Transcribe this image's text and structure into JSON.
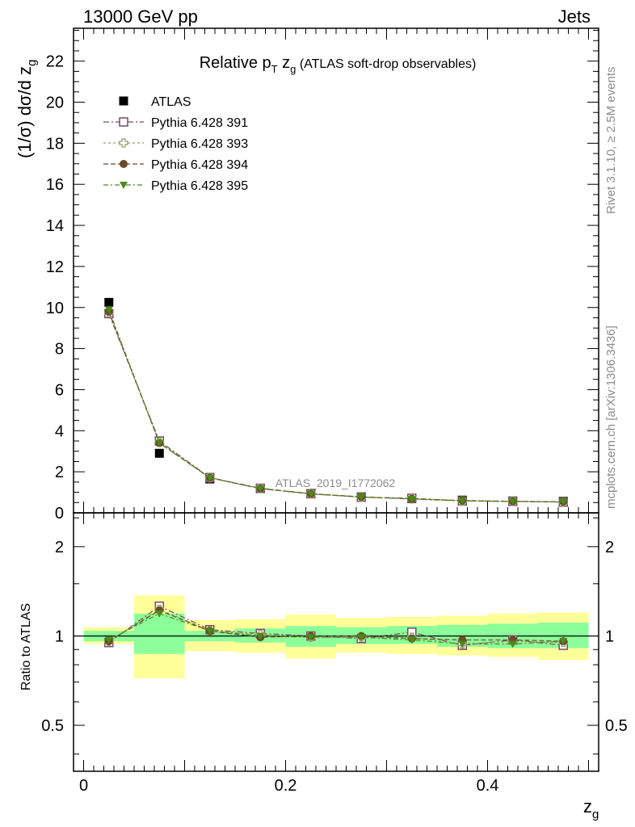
{
  "header": {
    "energy_label": "13000 GeV pp",
    "process_label": "Jets"
  },
  "side": {
    "rivet": "Rivet 3.1.10, ≥ 2.5M events",
    "mcplots": "mcplots.cern.ch [arXiv:1306.3436]"
  },
  "colors": {
    "atlas": "#000000",
    "p391": "#7a4a62",
    "p393": "#9a9a6a",
    "p394": "#6b4a2a",
    "p395": "#4a8a1a",
    "band_inner": "#8cff9a",
    "band_outer": "#ffff99"
  },
  "chart_data": [
    {
      "type": "scatter",
      "title": "Relative pT zg (ATLAS soft-drop observables)",
      "title_parts": {
        "main": "Relative p",
        "sub_t": "T",
        "mid": " z",
        "sub_g": "g",
        "rest": " (ATLAS soft-drop observables)"
      },
      "ylabel": "(1/σ) dσ/d z",
      "ylabel_sub": "g",
      "watermark": "ATLAS_2019_I1772062",
      "xlim": [
        -0.01,
        0.51
      ],
      "ylim": [
        0,
        23.6
      ],
      "yticks": [
        "0",
        "2",
        "4",
        "6",
        "8",
        "10",
        "12",
        "14",
        "16",
        "18",
        "20",
        "22"
      ],
      "legend_placement": "top-left",
      "x": [
        0.025,
        0.075,
        0.125,
        0.175,
        0.225,
        0.275,
        0.325,
        0.375,
        0.425,
        0.475
      ],
      "series": [
        {
          "name": "ATLAS",
          "key": "atlas",
          "marker": "square-filled",
          "values": [
            10.25,
            2.9,
            1.65,
            1.18,
            0.93,
            0.78,
            0.69,
            0.62,
            0.58,
            0.56
          ]
        },
        {
          "name": "Pythia 6.428 391",
          "key": "p391",
          "marker": "square-open",
          "values": [
            9.7,
            3.5,
            1.72,
            1.2,
            0.93,
            0.76,
            0.71,
            0.58,
            0.56,
            0.52
          ]
        },
        {
          "name": "Pythia 6.428 393",
          "key": "p393",
          "marker": "cross-open",
          "values": [
            9.75,
            3.45,
            1.7,
            1.19,
            0.92,
            0.77,
            0.68,
            0.59,
            0.56,
            0.53
          ]
        },
        {
          "name": "Pythia 6.428 394",
          "key": "p394",
          "marker": "circle-filled",
          "values": [
            9.8,
            3.4,
            1.71,
            1.18,
            0.93,
            0.78,
            0.68,
            0.6,
            0.56,
            0.54
          ]
        },
        {
          "name": "Pythia 6.428 395",
          "key": "p395",
          "marker": "triangle-down-filled",
          "values": [
            9.9,
            3.4,
            1.7,
            1.18,
            0.92,
            0.77,
            0.67,
            0.58,
            0.55,
            0.54
          ]
        }
      ]
    },
    {
      "type": "scatter",
      "ylabel": "Ratio to ATLAS",
      "xlabel": "z",
      "xlabel_sub": "g",
      "xlim": [
        -0.01,
        0.51
      ],
      "ylim": [
        0.35,
        2.6
      ],
      "log_scale_y": true,
      "yticks": [
        "0.5",
        "1",
        "2"
      ],
      "xticks": [
        "0",
        "0.2",
        "0.4"
      ],
      "reference_line": 1,
      "x": [
        0.025,
        0.075,
        0.125,
        0.175,
        0.225,
        0.275,
        0.325,
        0.375,
        0.425,
        0.475
      ],
      "x_bins": [
        [
          0.0,
          0.05
        ],
        [
          0.05,
          0.1
        ],
        [
          0.1,
          0.15
        ],
        [
          0.15,
          0.2
        ],
        [
          0.2,
          0.25
        ],
        [
          0.25,
          0.3
        ],
        [
          0.3,
          0.35
        ],
        [
          0.35,
          0.4
        ],
        [
          0.4,
          0.45
        ],
        [
          0.45,
          0.5
        ]
      ],
      "band_inner": [
        [
          0.96,
          1.04
        ],
        [
          0.87,
          1.19
        ],
        [
          0.96,
          1.04
        ],
        [
          0.95,
          1.06
        ],
        [
          0.92,
          1.08
        ],
        [
          0.94,
          1.07
        ],
        [
          0.94,
          1.08
        ],
        [
          0.92,
          1.09
        ],
        [
          0.91,
          1.1
        ],
        [
          0.91,
          1.11
        ]
      ],
      "band_outer": [
        [
          0.94,
          1.07
        ],
        [
          0.72,
          1.37
        ],
        [
          0.89,
          1.13
        ],
        [
          0.88,
          1.14
        ],
        [
          0.84,
          1.18
        ],
        [
          0.88,
          1.15
        ],
        [
          0.87,
          1.16
        ],
        [
          0.86,
          1.17
        ],
        [
          0.85,
          1.19
        ],
        [
          0.83,
          1.2
        ]
      ],
      "series": [
        {
          "name": "Pythia 6.428 391",
          "key": "p391",
          "marker": "square-open",
          "values": [
            0.95,
            1.26,
            1.05,
            1.02,
            1.0,
            0.98,
            1.03,
            0.93,
            0.97,
            0.93
          ]
        },
        {
          "name": "Pythia 6.428 393",
          "key": "p393",
          "marker": "cross-open",
          "values": [
            0.96,
            1.23,
            1.04,
            1.01,
            0.99,
            0.99,
            0.99,
            0.94,
            0.96,
            0.95
          ]
        },
        {
          "name": "Pythia 6.428 394",
          "key": "p394",
          "marker": "circle-filled",
          "values": [
            0.96,
            1.22,
            1.04,
            0.99,
            1.0,
            1.0,
            0.98,
            0.97,
            0.97,
            0.96
          ]
        },
        {
          "name": "Pythia 6.428 395",
          "key": "p395",
          "marker": "triangle-down-filled",
          "values": [
            0.97,
            1.19,
            1.04,
            1.0,
            0.99,
            0.99,
            0.97,
            0.94,
            0.94,
            0.96
          ]
        }
      ]
    }
  ]
}
